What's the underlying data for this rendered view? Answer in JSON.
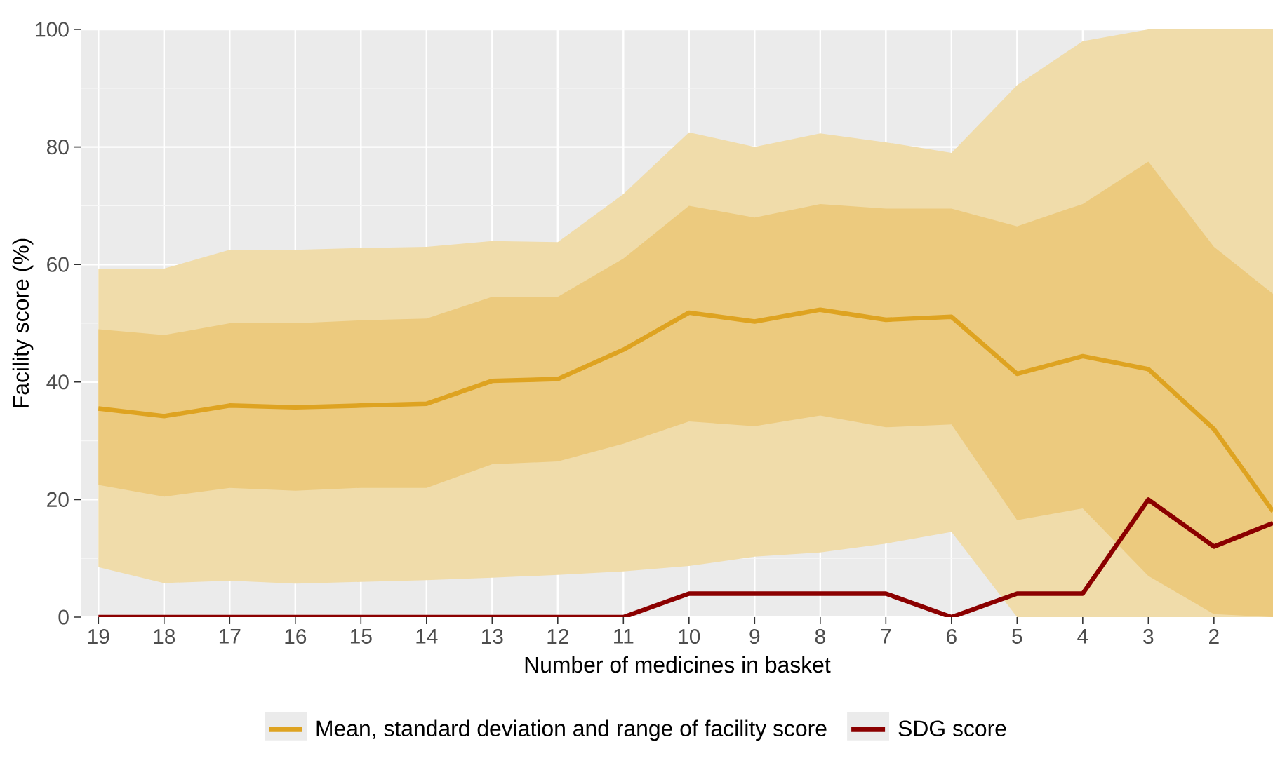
{
  "chart_data": {
    "type": "line",
    "xlabel": "Number of medicines in basket",
    "ylabel": "Facility score (%)",
    "x": [
      19,
      18,
      17,
      16,
      15,
      14,
      13,
      12,
      11,
      10,
      9,
      8,
      7,
      6,
      5,
      4,
      3,
      2,
      1.1
    ],
    "series": [
      {
        "type": "area",
        "color": "#f0dcaa",
        "values": [
          null,
          null,
          null,
          null,
          null,
          null,
          null,
          null,
          null,
          null,
          null,
          null,
          null,
          null,
          null,
          null,
          null,
          null,
          null
        ],
        "upper": [
          59.3,
          59.3,
          62.5,
          62.5,
          62.8,
          63,
          64,
          63.8,
          72,
          82.5,
          80,
          82.3,
          80.8,
          79,
          90.5,
          98,
          100,
          100,
          100
        ],
        "lower": [
          8.5,
          5.8,
          6.2,
          5.7,
          6,
          6.3,
          6.7,
          7.2,
          7.8,
          8.7,
          10.3,
          11,
          12.5,
          14.5,
          0,
          0,
          0,
          0,
          0
        ]
      },
      {
        "name": "Mean, standard deviation and range of facility score",
        "color": "#dea321",
        "values": [
          35.5,
          34.2,
          36,
          35.7,
          36,
          36.3,
          40.2,
          40.5,
          45.5,
          51.8,
          50.3,
          52.3,
          50.6,
          51.1,
          41.4,
          44.4,
          42.2,
          32,
          18
        ],
        "lower": [
          22.5,
          20.5,
          22,
          21.5,
          22,
          22,
          26,
          26.5,
          29.5,
          33.3,
          32.5,
          34.3,
          32.3,
          32.8,
          16.5,
          18.5,
          7,
          0.5,
          0
        ],
        "upper": [
          49,
          48,
          50,
          50,
          50.5,
          50.8,
          54.5,
          54.5,
          61,
          70,
          68,
          70.3,
          69.5,
          69.5,
          66.5,
          70.3,
          77.5,
          63,
          55
        ]
      },
      {
        "type": "line",
        "name": "SDG score",
        "color": "#8b0000",
        "values": [
          0,
          0,
          0,
          0,
          0,
          0,
          0,
          0,
          0,
          4,
          4,
          4,
          4,
          0,
          4,
          4,
          20,
          12,
          16
        ]
      }
    ],
    "xlim": [
      19.26,
      1.1
    ],
    "xticks": [
      19,
      18,
      17,
      16,
      15,
      14,
      13,
      12,
      11,
      10,
      9,
      8,
      7,
      6,
      5,
      4,
      3,
      2
    ],
    "ylim": [
      0,
      100
    ],
    "yticks": [
      0,
      20,
      40,
      60,
      80,
      100
    ],
    "grid": true,
    "legend": "bottom"
  }
}
